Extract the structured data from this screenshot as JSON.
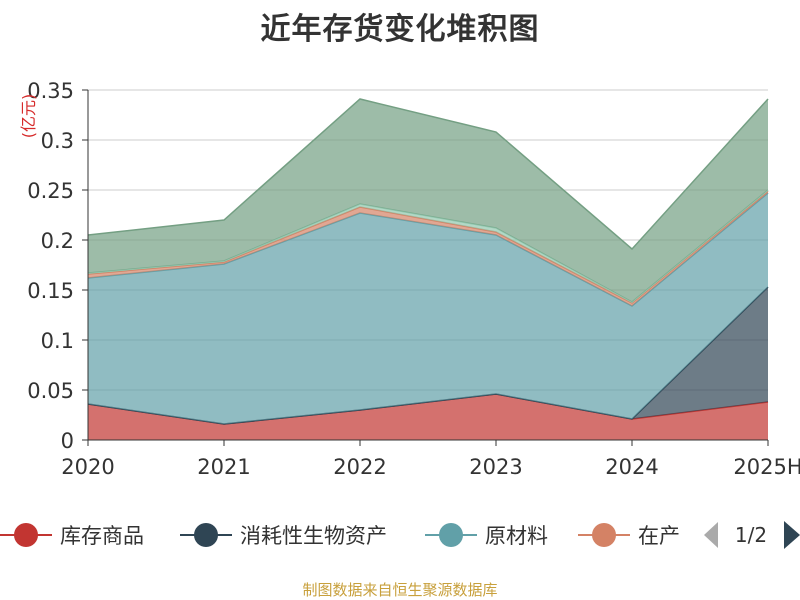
{
  "chart_data": {
    "type": "area",
    "stacked": true,
    "title": "近年存货变化堆积图",
    "unit_label": "(亿元)",
    "categories": [
      "2020",
      "2021",
      "2022",
      "2023",
      "2024",
      "2025H"
    ],
    "ylim": [
      0,
      0.35
    ],
    "yticks": [
      "0",
      "0.05",
      "0.1",
      "0.15",
      "0.2",
      "0.25",
      "0.3",
      "0.35"
    ],
    "grid": true,
    "legend_position": "bottom",
    "series": [
      {
        "name": "库存商品",
        "color": "#c23531",
        "values": [
          0.036,
          0.016,
          0.03,
          0.046,
          0.021,
          0.038
        ]
      },
      {
        "name": "消耗性生物资产",
        "color": "#2f4554",
        "values": [
          0,
          0,
          0,
          0,
          0,
          0.115
        ]
      },
      {
        "name": "原材料",
        "color": "#61a0a8",
        "values": [
          0.126,
          0.16,
          0.197,
          0.159,
          0.113,
          0.094
        ]
      },
      {
        "name": "在产",
        "color": "#d48265",
        "values": [
          0.004,
          0.002,
          0.006,
          0.003,
          0.003,
          0.002
        ]
      },
      {
        "name": "",
        "color": "#91c7ae",
        "values": [
          0.001,
          0.001,
          0.003,
          0.004,
          0.001,
          0.001
        ]
      },
      {
        "name": "",
        "color": "#749f83",
        "values": [
          0.038,
          0.041,
          0.105,
          0.096,
          0.053,
          0.091
        ]
      }
    ],
    "legend_page": "1/2",
    "source": "制图数据来自恒生聚源数据库"
  }
}
